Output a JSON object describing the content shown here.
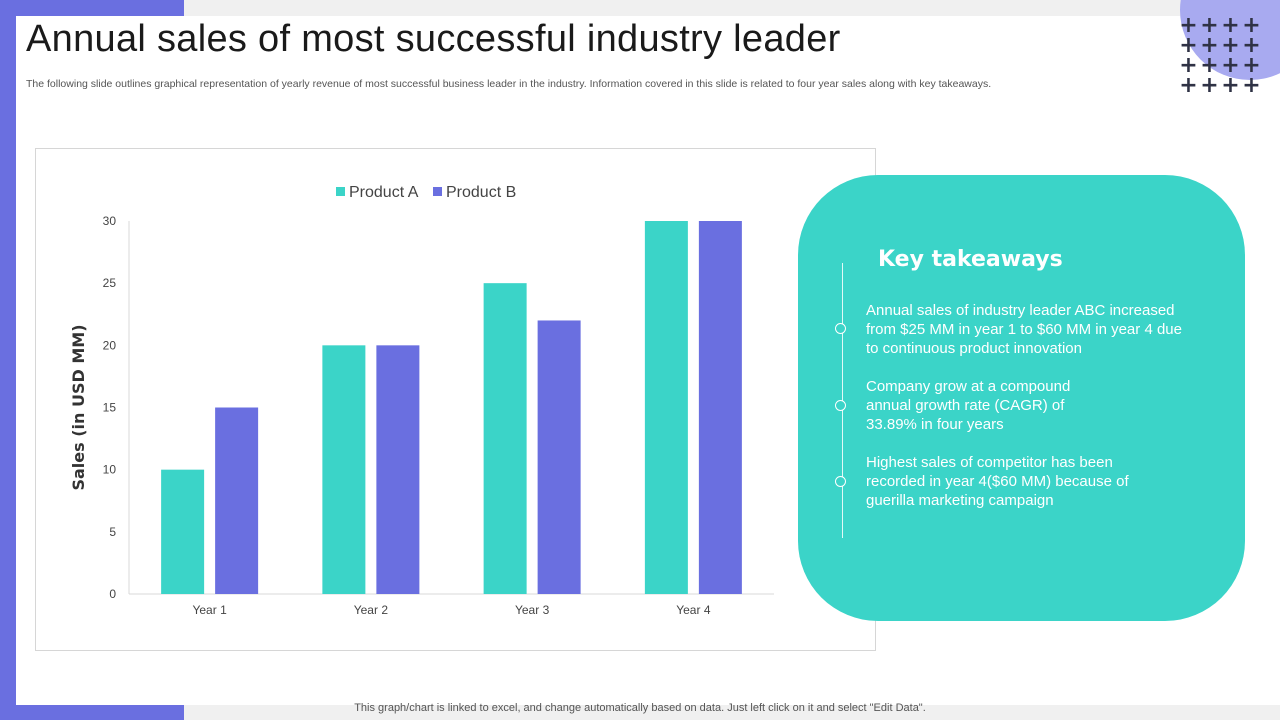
{
  "title": "Annual sales of most successful industry leader",
  "subtitle": "The following slide outlines graphical representation of yearly revenue of most successful business leader in the industry. Information covered in this slide is related to four year sales along with key takeaways.",
  "footer": "This graph/chart is linked to excel, and change automatically based on data. Just left click on it and select \"Edit Data\".",
  "colors": {
    "accent": "#6a6fe0",
    "teal": "#3bd4c8",
    "product_a": "#3bd4c8",
    "product_b": "#6a6fe0"
  },
  "decor": {
    "plus_icon": "plus-icon"
  },
  "chart_data": {
    "type": "bar",
    "categories": [
      "Year 1",
      "Year 2",
      "Year 3",
      "Year 4"
    ],
    "series": [
      {
        "name": "Product A",
        "values": [
          10,
          20,
          25,
          30
        ]
      },
      {
        "name": "Product B",
        "values": [
          15,
          20,
          22,
          30
        ]
      }
    ],
    "title": "",
    "xlabel": "",
    "ylabel": "Sales (in USD MM)",
    "ylim": [
      0,
      30
    ],
    "yticks": [
      0,
      5,
      10,
      15,
      20,
      25,
      30
    ],
    "grid": false,
    "legend": "top"
  },
  "takeaways": {
    "heading": "Key takeaways",
    "items": [
      {
        "lines": [
          "Annual sales of industry  leader ABC increased",
          "from $25 MM  in year  1 to $60 MM in year 4 due",
          "to continuous  product innovation"
        ]
      },
      {
        "lines": [
          "Company grow at a compound",
          "annual growth rate (CAGR) of",
          "33.89% in four years"
        ]
      },
      {
        "lines": [
          "Highest sales of competitor has been",
          "recorded in year 4($60 MM) because of",
          "guerilla marketing campaign"
        ]
      }
    ]
  }
}
